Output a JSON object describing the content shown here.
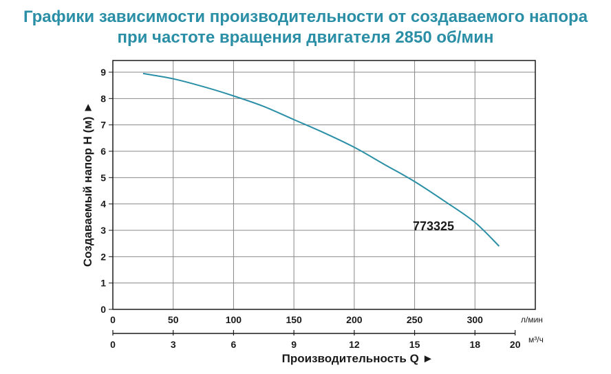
{
  "title_line1": "Графики зависимости производительности от создаваемого напора",
  "title_line2": "при частоте вращения двигателя 2850 об/мин",
  "colors": {
    "title": "#2a8fa6",
    "curve": "#2a8fa6",
    "grid": "#888888",
    "axis": "#1a1a1a"
  },
  "chart_data": {
    "type": "line",
    "title": "Графики зависимости производительности от создаваемого напора при частоте вращения двигателя 2850 об/мин",
    "ylabel": "Создаваемый напор H (м) ►",
    "xlabel": "Производительность Q ►",
    "ylim": [
      0,
      9
    ],
    "yticks": [
      "0",
      "1",
      "2",
      "3",
      "4",
      "5",
      "6",
      "7",
      "8",
      "9"
    ],
    "x_primary": {
      "unit": "л/мин",
      "range": [
        0,
        350
      ],
      "ticks": [
        "0",
        "50",
        "100",
        "150",
        "200",
        "250",
        "300"
      ],
      "tick_values": [
        0,
        50,
        100,
        150,
        200,
        250,
        300
      ]
    },
    "x_secondary": {
      "unit": "м³/ч",
      "ticks": [
        "0",
        "3",
        "6",
        "9",
        "12",
        "15",
        "18",
        "20"
      ],
      "tick_values_lpm": [
        0,
        50,
        100,
        150,
        200,
        250,
        300,
        333.3
      ]
    },
    "grid": true,
    "series": [
      {
        "name": "773325",
        "x": [
          25,
          50,
          75,
          100,
          125,
          150,
          175,
          200,
          225,
          250,
          275,
          300,
          320
        ],
        "y": [
          8.95,
          8.75,
          8.45,
          8.1,
          7.7,
          7.2,
          6.7,
          6.15,
          5.5,
          4.85,
          4.1,
          3.3,
          2.4
        ]
      }
    ],
    "series_label": "773325"
  }
}
